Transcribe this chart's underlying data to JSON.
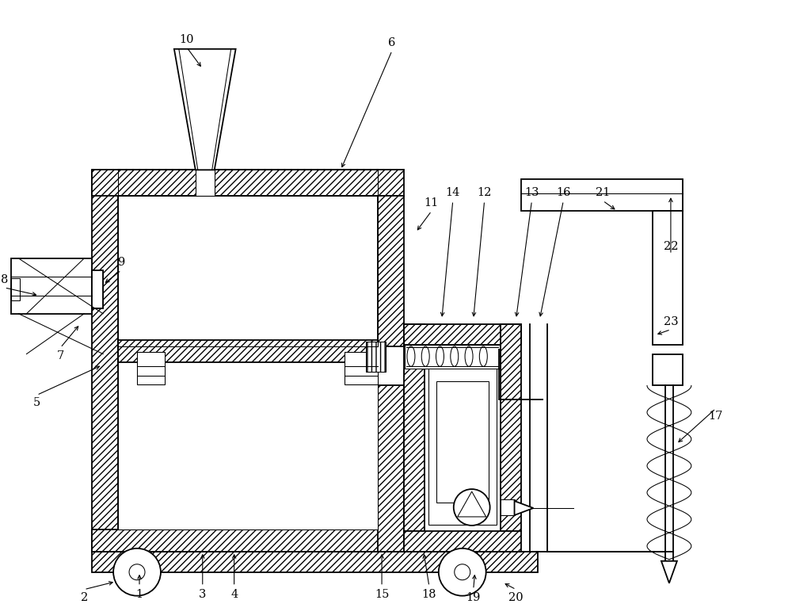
{
  "bg": "#ffffff",
  "lw": 1.3,
  "lws": 0.75,
  "fig_w": 10.0,
  "fig_h": 7.62,
  "dpi": 100,
  "xlim": [
    0,
    10
  ],
  "ylim": [
    0,
    7.62
  ]
}
